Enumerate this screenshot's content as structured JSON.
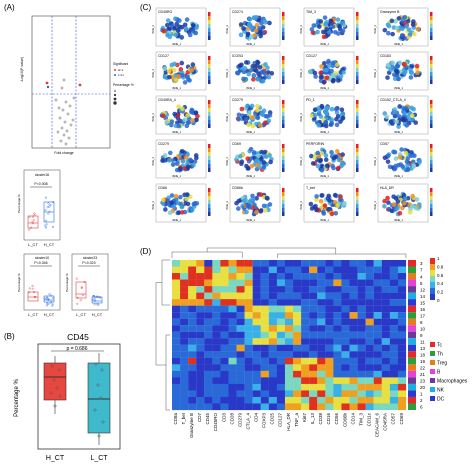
{
  "panels": {
    "a": "(A)",
    "b": "(B)",
    "c": "(C)",
    "d": "(D)"
  },
  "volcano": {
    "legend_title": "Significant",
    "legend_items": [
      "H>L",
      "L>H"
    ],
    "legend_pct_title": "Percentage %",
    "xlabel": "Fold change",
    "ylabel": "-Log10(P-value)"
  },
  "mini_boxplots": [
    {
      "title": "cluster16",
      "pval": "P=0.008",
      "ylabel": "Percentage %",
      "groups": [
        "L_CT",
        "H_CT"
      ]
    },
    {
      "title": "cluster10",
      "pval": "P=0.046",
      "ylabel": "Percentage %",
      "groups": [
        "L_CT",
        "H_CT"
      ]
    },
    {
      "title": "cluster23",
      "pval": "P=0.023",
      "ylabel": "Percentage %",
      "groups": [
        "L_CT",
        "H_CT"
      ]
    }
  ],
  "cd45": {
    "title": "CD45",
    "pval": "p = 0.686",
    "ylabel": "Percentage %",
    "categories": [
      "H_CT",
      "L_CT"
    ],
    "colors": [
      "#e8473f",
      "#3fb9cc"
    ]
  },
  "tsne_markers": [
    "CD45RO",
    "CD274",
    "TIM_3",
    "Granzyme B",
    "CD127",
    "ICOSG",
    "CD127",
    "CD183",
    "CD45RA_4",
    "CD279",
    "PD_1",
    "CD152_CTLA_4",
    "CD279",
    "CD69",
    "PERFORIN",
    "CD57",
    "CD66",
    "CD66b",
    "T_bet",
    "HLA_DR"
  ],
  "tsne_axes": {
    "x": "tSNE_1",
    "y": "tSNE_2"
  },
  "heatmap": {
    "row_labels": [
      "3",
      "7",
      "4",
      "5",
      "12",
      "14",
      "15",
      "16",
      "17",
      "8",
      "10",
      "9",
      "11",
      "13",
      "18",
      "19",
      "22",
      "21",
      "23",
      "20",
      "1",
      "2",
      "6"
    ],
    "col_labels": [
      "CD8a",
      "T_bet",
      "Granzyme B",
      "CD7",
      "CD45",
      "CD45RO",
      "CD3",
      "CD28",
      "CD279",
      "CTLA_4",
      "CD4",
      "FOXP3",
      "CD25",
      "CD127",
      "HLA_DR",
      "TNF_a",
      "Ki67",
      "IL_13",
      "CD38",
      "CD16",
      "CD56",
      "CD66b",
      "CD14",
      "TIM_3",
      "CD11c",
      "CEACAM_6",
      "CD45RA",
      "CD57",
      "CD69"
    ],
    "scale_ticks": [
      "1",
      "0.8",
      "0.6",
      "0.4",
      "0.2",
      "0"
    ],
    "legend": [
      {
        "label": "Tc",
        "color": "#e8272a"
      },
      {
        "label": "Th",
        "color": "#2aa03a"
      },
      {
        "label": "Treg",
        "color": "#e87b1a"
      },
      {
        "label": "B",
        "color": "#e840d8"
      },
      {
        "label": "Macrophages",
        "color": "#6a3a9a"
      },
      {
        "label": "NK",
        "color": "#1ab0e0"
      },
      {
        "label": "DC",
        "color": "#2a3ad0"
      }
    ]
  }
}
